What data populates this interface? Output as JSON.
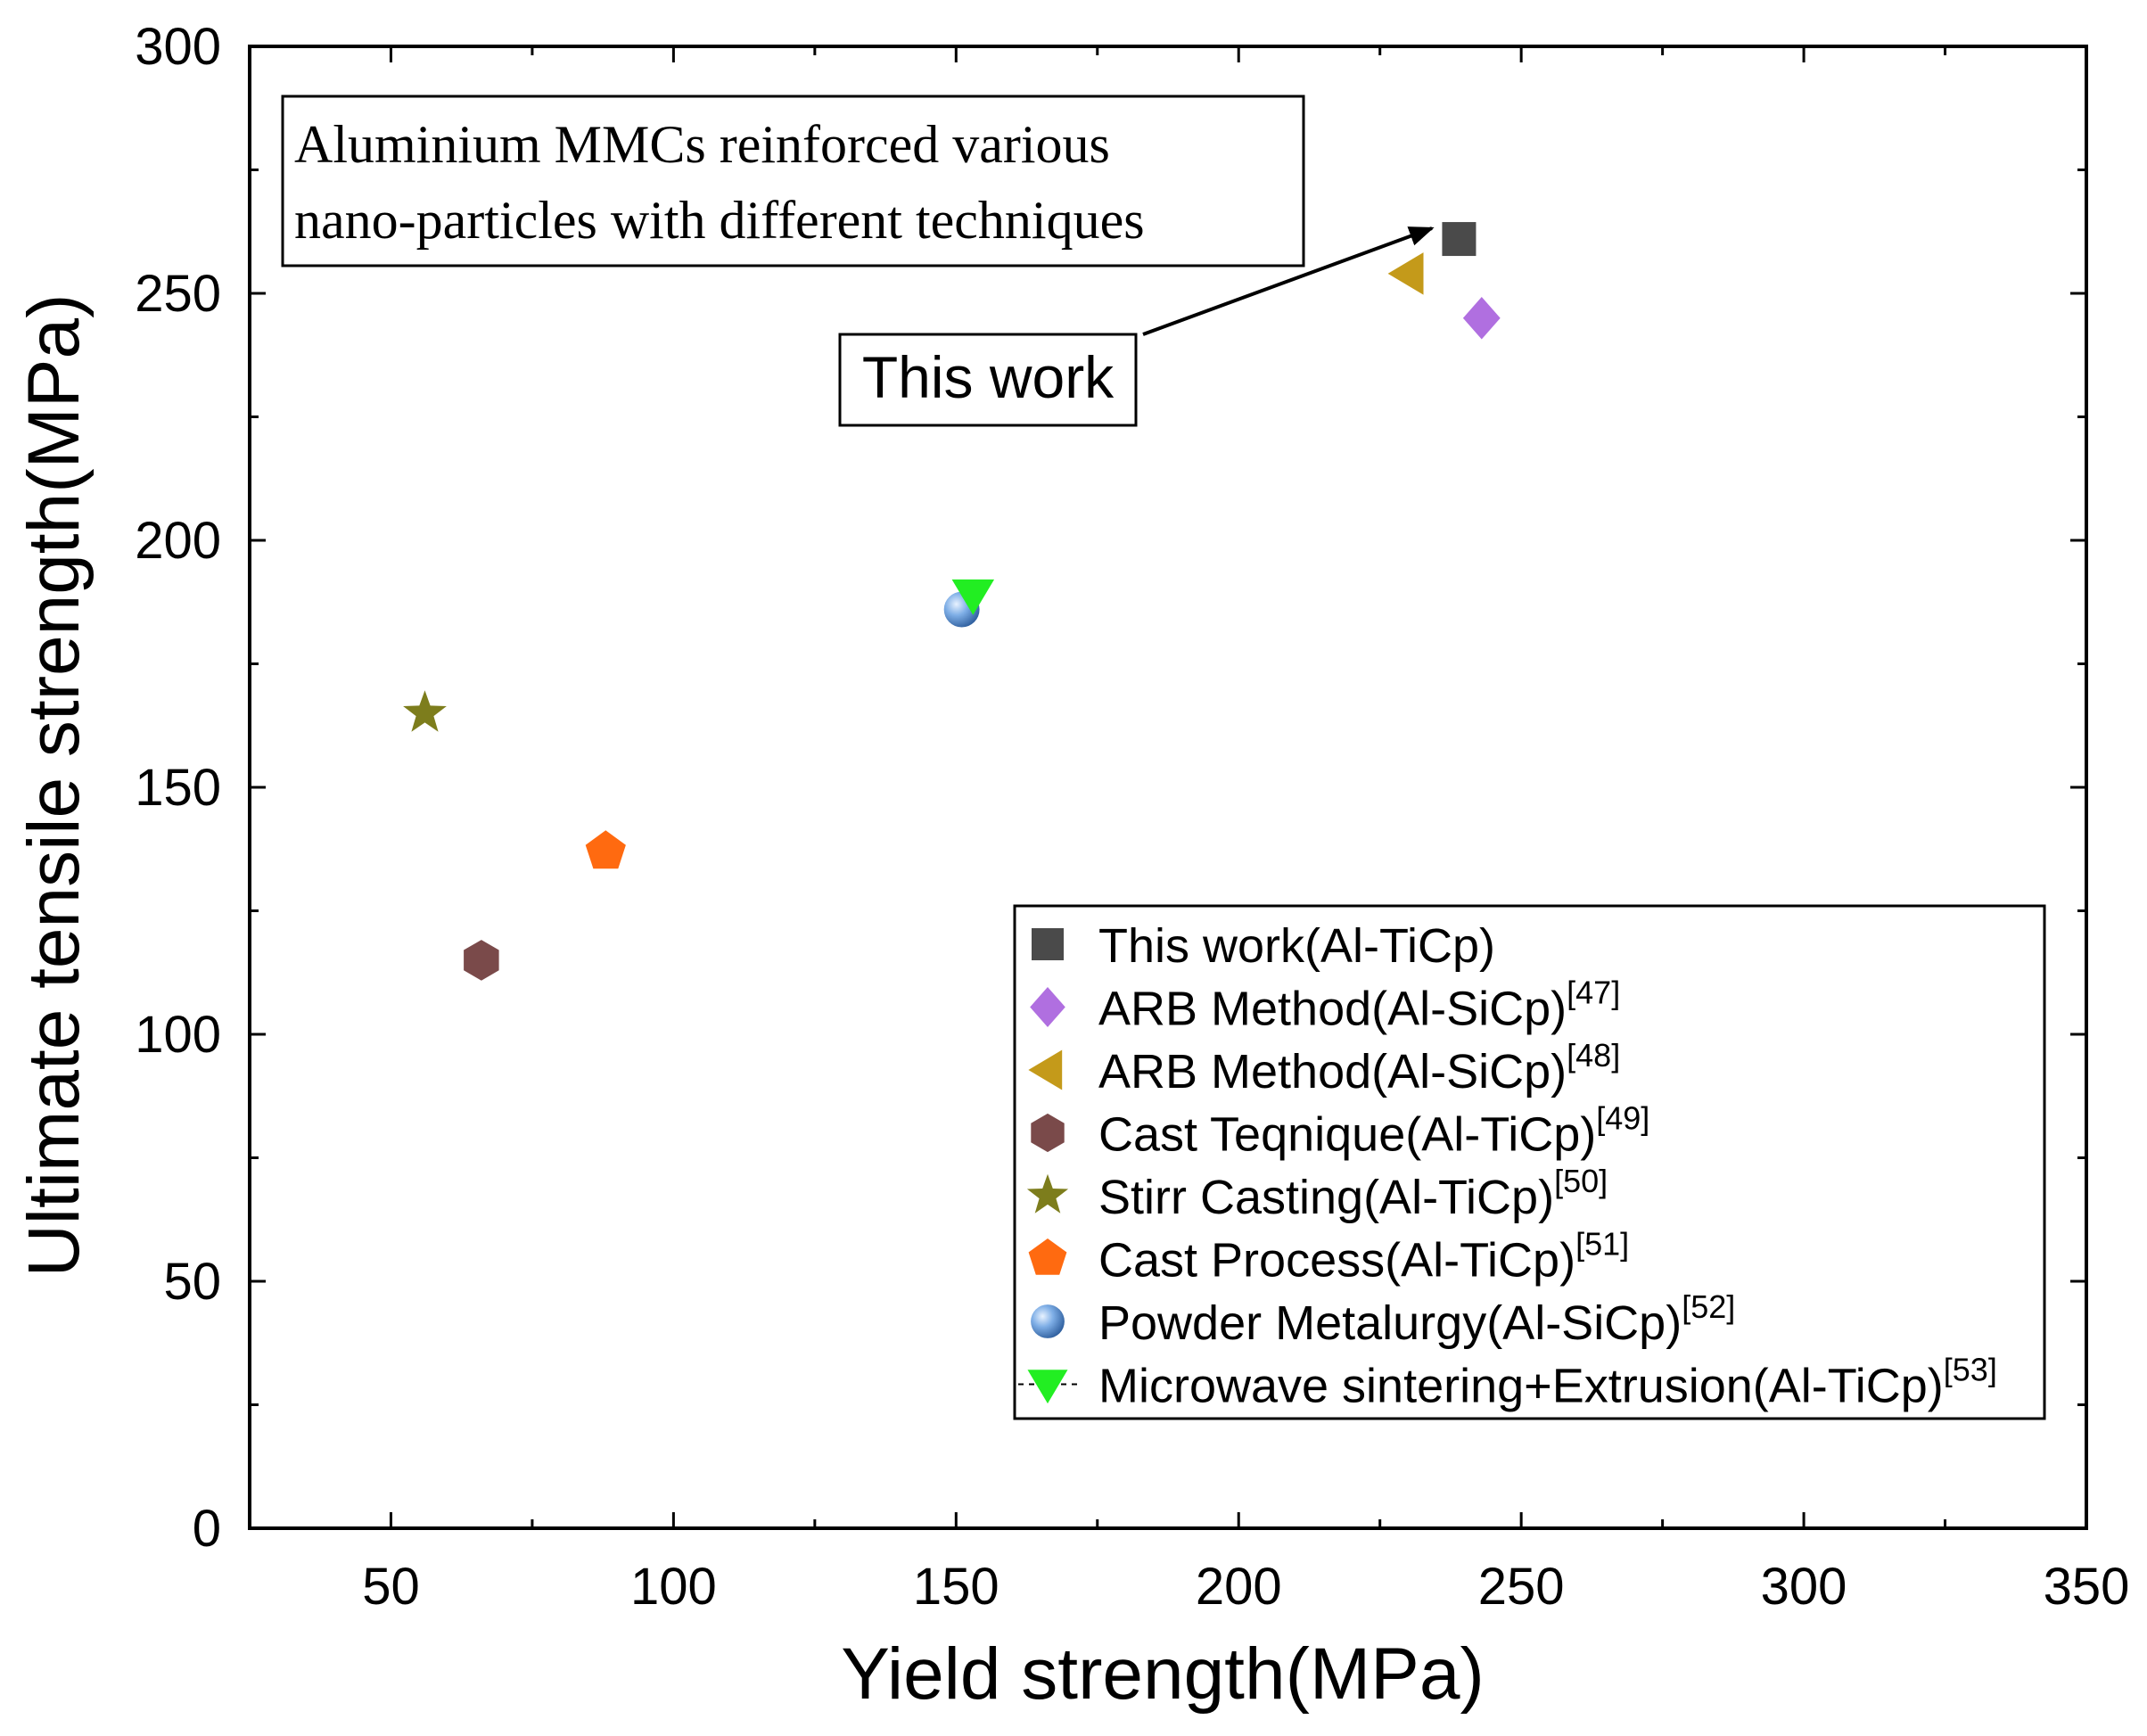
{
  "chart_data": {
    "type": "scatter",
    "xlabel": "Yield strength(MPa)",
    "ylabel": "Ultimate tensile strength(MPa)",
    "xlim": [
      25,
      350
    ],
    "ylim": [
      0,
      300
    ],
    "x_ticks": [
      50,
      100,
      150,
      200,
      250,
      300,
      350
    ],
    "y_ticks": [
      0,
      50,
      100,
      150,
      200,
      250,
      300
    ],
    "grid": false,
    "legend_position": "bottom-right",
    "annotations": {
      "box_text_line1": "Aluminium MMCs reinforced various",
      "box_text_line2": "nano-particles with different techniques",
      "callout_label": "This work"
    },
    "series": [
      {
        "name": "This work(Al-TiCp)",
        "ref": "",
        "marker": "square",
        "color": "#4a4a4a",
        "points": [
          {
            "x": 239,
            "y": 261
          }
        ]
      },
      {
        "name": "ARB Method(Al-SiCp)",
        "ref": "[47]",
        "marker": "diamond",
        "color": "#b06fe0",
        "points": [
          {
            "x": 243,
            "y": 245
          }
        ]
      },
      {
        "name": "ARB Method(Al-SiCp)",
        "ref": "[48]",
        "marker": "triangle-left",
        "color": "#c49a1a",
        "points": [
          {
            "x": 230,
            "y": 254
          }
        ]
      },
      {
        "name": "Cast Teqnique(Al-TiCp)",
        "ref": "[49]",
        "marker": "hexagon",
        "color": "#7a4a4a",
        "points": [
          {
            "x": 66,
            "y": 115
          }
        ]
      },
      {
        "name": "Stirr Casting(Al-TiCp)",
        "ref": "[50]",
        "marker": "star",
        "color": "#7d7d1c",
        "points": [
          {
            "x": 56,
            "y": 165
          }
        ]
      },
      {
        "name": "Cast Process(Al-TiCp)",
        "ref": "[51]",
        "marker": "pentagon",
        "color": "#ff6a10",
        "points": [
          {
            "x": 88,
            "y": 137
          }
        ]
      },
      {
        "name": "Powder Metalurgy(Al-SiCp)",
        "ref": "[52]",
        "marker": "sphere",
        "color": "#5a8fd0",
        "points": [
          {
            "x": 151,
            "y": 186
          }
        ]
      },
      {
        "name": "Microwave sintering+Extrusion(Al-TiCp)",
        "ref": "[53]",
        "marker": "triangle-down",
        "color": "#22ee22",
        "points": [
          {
            "x": 153,
            "y": 189
          }
        ]
      }
    ]
  }
}
